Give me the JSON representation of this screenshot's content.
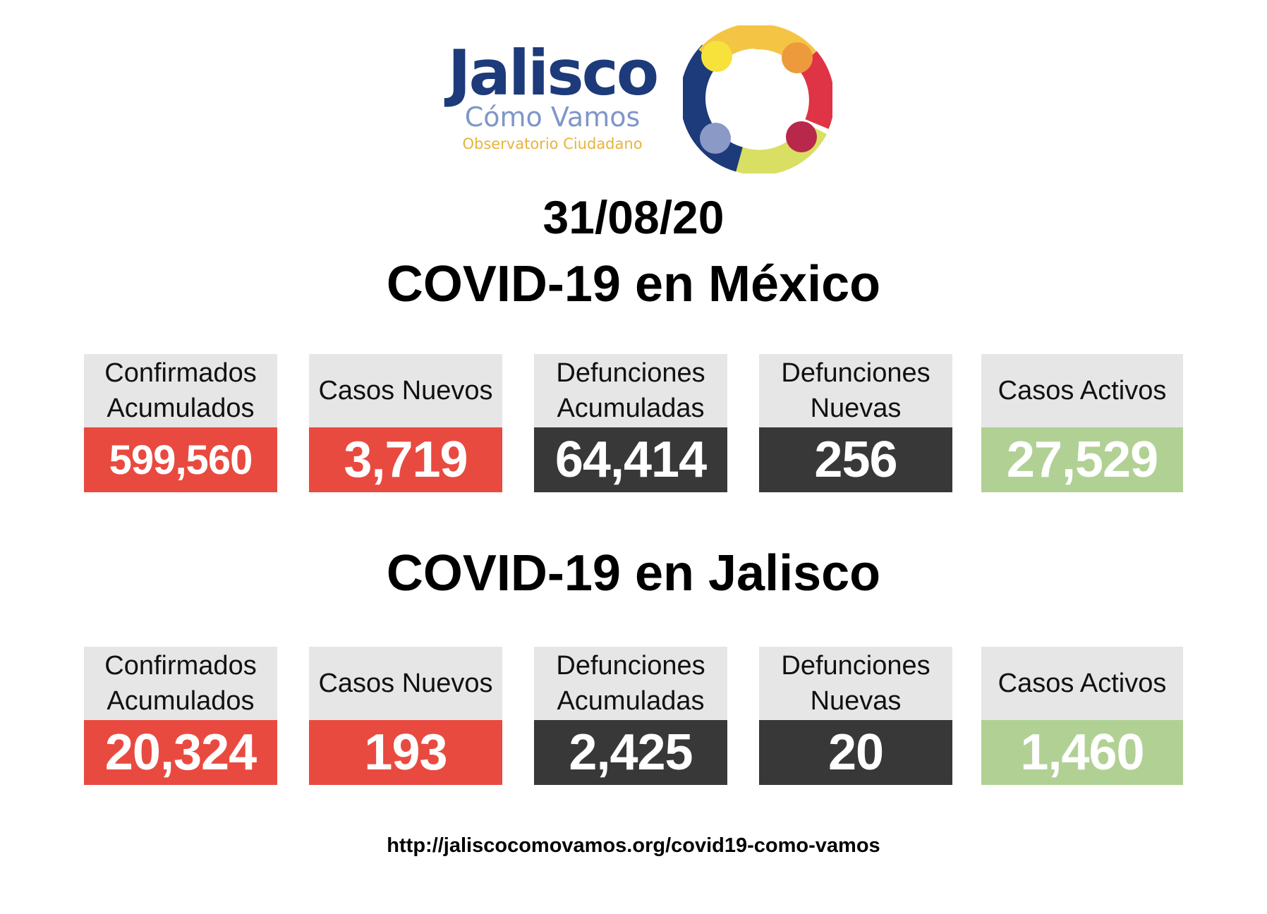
{
  "logo": {
    "title": "Jalisco",
    "subtitle": "Cómo Vamos",
    "tagline": "Observatorio Ciudadano",
    "colors": {
      "title": "#1d3a7a",
      "subtitle": "#7f96c8",
      "tagline": "#e8b33a",
      "ring_yellow": "#f4c545",
      "ring_orange": "#ec9a3c",
      "ring_red": "#df3346",
      "ring_crimson": "#b8284a",
      "ring_lime": "#d9df62",
      "ring_navy": "#1d3a7a",
      "ring_lavender": "#8a99c6"
    }
  },
  "date": "31/08/20",
  "mexico": {
    "title": "COVID-19 en México",
    "stats": [
      {
        "label": "Confirmados\nAcumulados",
        "value": "599,560",
        "color": "#e94a40"
      },
      {
        "label": "Casos Nuevos",
        "value": "3,719",
        "color": "#e94a40"
      },
      {
        "label": "Defunciones\nAcumuladas",
        "value": "64,414",
        "color": "#383838"
      },
      {
        "label": "Defunciones\nNuevas",
        "value": "256",
        "color": "#383838"
      },
      {
        "label": "Casos Activos",
        "value": "27,529",
        "color": "#b0d193"
      }
    ]
  },
  "jalisco": {
    "title": "COVID-19 en Jalisco",
    "stats": [
      {
        "label": "Confirmados\nAcumulados",
        "value": "20,324",
        "color": "#e94a40"
      },
      {
        "label": "Casos Nuevos",
        "value": "193",
        "color": "#e94a40"
      },
      {
        "label": "Defunciones\nAcumuladas",
        "value": "2,425",
        "color": "#383838"
      },
      {
        "label": "Defunciones\nNuevas",
        "value": "20",
        "color": "#383838"
      },
      {
        "label": "Casos Activos",
        "value": "1,460",
        "color": "#b0d193"
      }
    ]
  },
  "footer": {
    "url": "http://jaliscocomovamos.org/covid19-como-vamos"
  }
}
